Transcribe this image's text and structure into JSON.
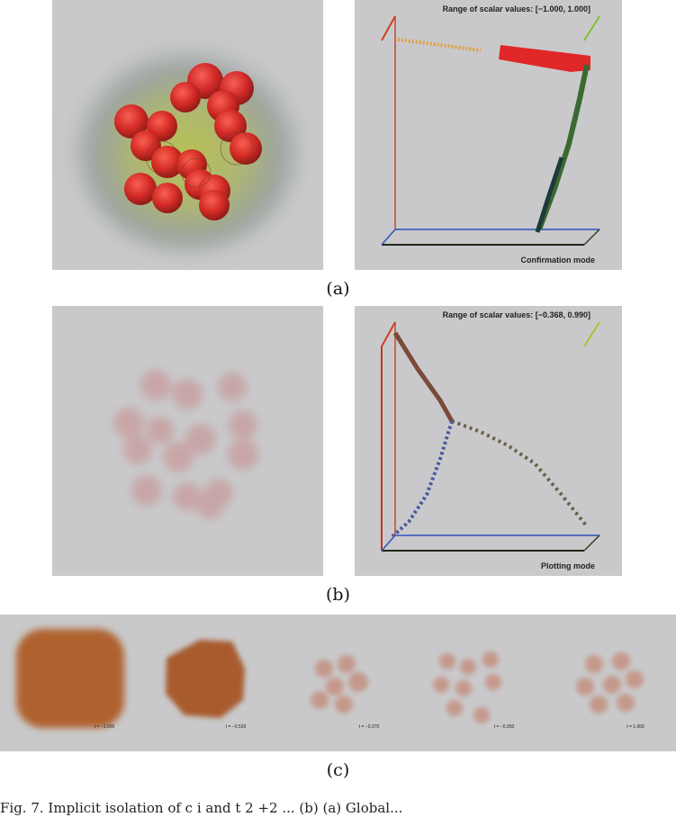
{
  "panel_a": {
    "range_text": "Range of scalar values: [−1.000,  1.000]",
    "mode_text": "Confirmation mode"
  },
  "panel_b": {
    "range_text": "Range of scalar values: [−0.368,  0.990]",
    "mode_text": "Plotting mode"
  },
  "captions": {
    "a": "(a)",
    "b": "(b)",
    "c": "(c)"
  },
  "strip_labels": [
    "t = −1.000",
    "t = −0.520",
    "t = −0.370",
    "t = −0.350",
    "t = 1.000"
  ],
  "body_text": "Fig. 7. Implicit isolation of c i and t  2   +2 ...   (b) (a) Global... ",
  "colors": {
    "panel_bg": "#c9c9cb",
    "ball_red": "#d62020",
    "strip_orange": "#b0622e"
  }
}
